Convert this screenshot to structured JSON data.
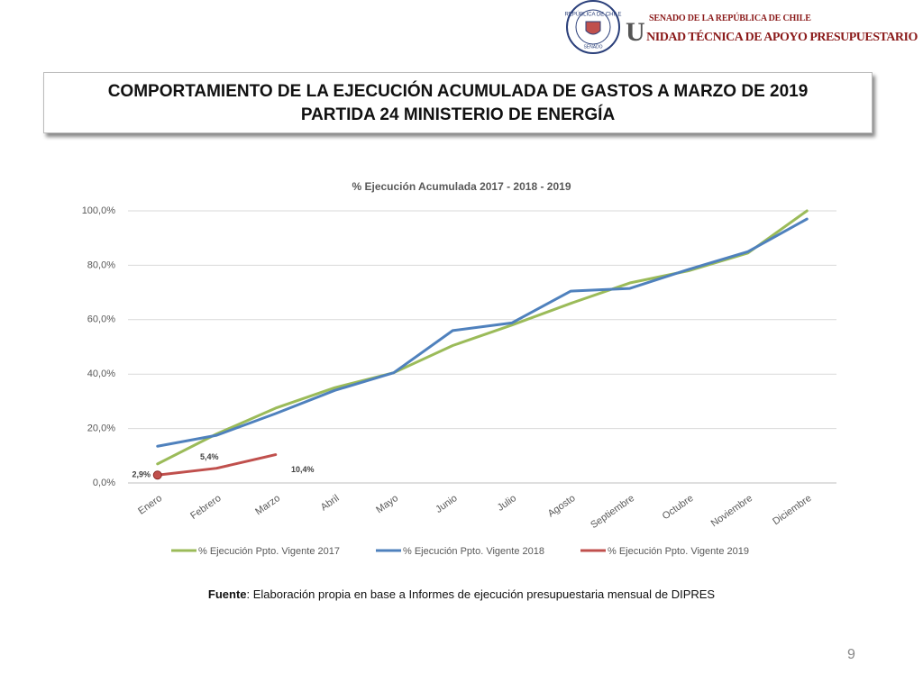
{
  "header": {
    "seal_top": "REPÚBLICA DE CHILE",
    "seal_bottom": "SENADO",
    "org": "SENADO DE LA REPÚBLICA DE CHILE",
    "unit": "UNIDAD TÉCNICA DE APOYO PRESUPUESTARIO"
  },
  "title": [
    "COMPORTAMIENTO DE LA EJECUCIÓN ACUMULADA DE GASTOS A MARZO DE 2019",
    "PARTIDA 24 MINISTERIO DE ENERGÍA"
  ],
  "chart_data": {
    "type": "line",
    "title": "% Ejecución Acumulada  2017 - 2018 - 2019",
    "categories": [
      "Enero",
      "Febrero",
      "Marzo",
      "Abril",
      "Mayo",
      "Junio",
      "Julio",
      "Agosto",
      "Septiembre",
      "Octubre",
      "Noviembre",
      "Diciembre"
    ],
    "series": [
      {
        "name": "% Ejecución Ppto. Vigente 2017",
        "color": "#9bbb59",
        "values": [
          7,
          18,
          27.5,
          35,
          40.5,
          50.5,
          58,
          66,
          73.5,
          78,
          84.5,
          100
        ]
      },
      {
        "name": "% Ejecución Ppto. Vigente 2018",
        "color": "#4f81bd",
        "values": [
          13.5,
          17.5,
          25.5,
          34,
          40.5,
          56,
          58.8,
          70.5,
          71.5,
          78.5,
          85,
          97
        ]
      },
      {
        "name": "% Ejecución Ppto. Vigente 2019",
        "color": "#c0504d",
        "values": [
          2.9,
          5.4,
          10.4,
          null,
          null,
          null,
          null,
          null,
          null,
          null,
          null,
          null
        ],
        "value_labels": [
          "2,9%",
          "5,4%",
          "10,4%",
          null,
          null,
          null,
          null,
          null,
          null,
          null,
          null,
          null
        ]
      }
    ],
    "ylim": [
      0,
      100
    ],
    "yticks": [
      {
        "value": 0,
        "label": "0,0%"
      },
      {
        "value": 20,
        "label": "20,0%"
      },
      {
        "value": 40,
        "label": "40,0%"
      },
      {
        "value": 60,
        "label": "60,0%"
      },
      {
        "value": 80,
        "label": "80,0%"
      },
      {
        "value": 100,
        "label": "100,0%"
      }
    ],
    "grid": true,
    "legend": "bottom"
  },
  "source": {
    "label": "Fuente",
    "text": ": Elaboración propia en base  a Informes de ejecución presupuestaria mensual de DIPRES"
  },
  "page_number": "9"
}
